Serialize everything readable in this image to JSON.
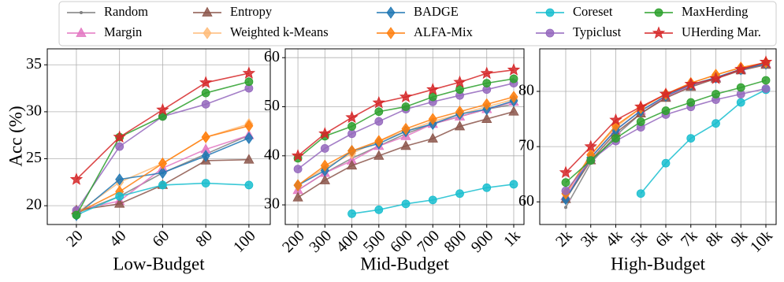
{
  "chart_data": [
    {
      "type": "line",
      "xlabel": "Low-Budget",
      "ylabel": "Acc (%)",
      "x": [
        20,
        40,
        60,
        80,
        100
      ],
      "xlim": [
        6.5,
        109.9
      ],
      "ylim": [
        18,
        36.7
      ],
      "xticks": [
        20,
        40,
        60,
        80,
        100
      ],
      "yticks": [
        20,
        25,
        30,
        35
      ],
      "grid": true,
      "series": [
        {
          "name": "Random",
          "color": "#7f7f7f",
          "marker": "dot",
          "values": [
            19.2,
            21.0,
            23.5,
            25.5,
            27.5
          ]
        },
        {
          "name": "Margin",
          "color": "#e377c2",
          "marker": "triangle",
          "values": [
            19.5,
            20.5,
            24.0,
            26.0,
            27.5
          ]
        },
        {
          "name": "Entropy",
          "color": "#8c564b",
          "marker": "triangle",
          "values": [
            19.5,
            20.2,
            22.2,
            24.8,
            24.9
          ]
        },
        {
          "name": "Weighted k-Means",
          "color": "#ffbb78",
          "marker": "diamond",
          "values": [
            19.2,
            22.5,
            24.5,
            27.3,
            28.7
          ]
        },
        {
          "name": "BADGE",
          "color": "#1f77b4",
          "marker": "diamond",
          "values": [
            19.0,
            22.8,
            23.5,
            25.3,
            27.2
          ]
        },
        {
          "name": "ALFA-Mix",
          "color": "#ff7f0e",
          "marker": "diamond",
          "values": [
            19.2,
            21.5,
            24.5,
            27.3,
            28.5
          ]
        },
        {
          "name": "Coreset",
          "color": "#17becf",
          "marker": "circle",
          "values": [
            19.0,
            21.0,
            22.2,
            22.4,
            22.2
          ]
        },
        {
          "name": "Typiclust",
          "color": "#9467bd",
          "marker": "circle",
          "values": [
            19.5,
            26.3,
            29.5,
            30.8,
            32.5
          ]
        },
        {
          "name": "MaxHerding",
          "color": "#2ca02c",
          "marker": "circle",
          "values": [
            19.0,
            27.3,
            29.5,
            32.0,
            33.2
          ]
        },
        {
          "name": "UHerding Mar.",
          "color": "#d62728",
          "marker": "star",
          "values": [
            22.8,
            27.3,
            30.2,
            33.1,
            34.1
          ]
        }
      ]
    },
    {
      "type": "line",
      "xlabel": "Mid-Budget",
      "x": [
        200,
        300,
        400,
        500,
        600,
        700,
        800,
        900,
        1000
      ],
      "xlim": [
        153,
        1038
      ],
      "ylim": [
        26,
        61.8
      ],
      "xticks": [
        200,
        300,
        400,
        500,
        600,
        700,
        800,
        900,
        {
          "value": 1000,
          "label": "1k"
        }
      ],
      "yticks": [
        30,
        40,
        50,
        60
      ],
      "grid": true,
      "series": [
        {
          "color": "#7f7f7f",
          "marker": "dot",
          "values": [
            33.0,
            36.5,
            39.5,
            42.0,
            44.5,
            46.5,
            48.0,
            49.5,
            50.5
          ]
        },
        {
          "color": "#e377c2",
          "marker": "triangle",
          "values": [
            33.0,
            36.5,
            39.0,
            42.0,
            44.0,
            46.5,
            48.0,
            49.5,
            51.0
          ]
        },
        {
          "color": "#8c564b",
          "marker": "triangle",
          "values": [
            31.5,
            35.0,
            38.0,
            40.0,
            42.0,
            43.5,
            46.0,
            47.5,
            49.0
          ]
        },
        {
          "color": "#ffbb78",
          "marker": "diamond",
          "values": [
            34.0,
            37.5,
            40.5,
            43.0,
            45.0,
            47.0,
            48.5,
            50.0,
            51.5
          ]
        },
        {
          "color": "#1f77b4",
          "marker": "diamond",
          "values": [
            34.0,
            37.0,
            41.0,
            42.5,
            45.0,
            46.5,
            48.5,
            49.5,
            51.2
          ]
        },
        {
          "color": "#ff7f0e",
          "marker": "diamond",
          "values": [
            34.0,
            38.0,
            41.0,
            43.0,
            45.5,
            47.5,
            49.0,
            50.5,
            52.0
          ]
        },
        {
          "color": "#17becf",
          "marker": "circle",
          "values": [
            null,
            null,
            28.2,
            29.0,
            30.2,
            31.0,
            32.3,
            33.5,
            34.2
          ]
        },
        {
          "color": "#9467bd",
          "marker": "circle",
          "values": [
            37.3,
            41.5,
            44.5,
            47.0,
            49.5,
            51.0,
            52.3,
            53.5,
            54.8
          ]
        },
        {
          "color": "#2ca02c",
          "marker": "circle",
          "values": [
            39.5,
            44.0,
            46.0,
            49.0,
            50.0,
            52.0,
            53.5,
            54.8,
            55.7
          ]
        },
        {
          "color": "#d62728",
          "marker": "star",
          "values": [
            40.0,
            44.5,
            47.8,
            50.8,
            52.0,
            53.5,
            55.0,
            56.8,
            57.5
          ]
        }
      ]
    },
    {
      "type": "line",
      "xlabel": "High-Budget",
      "x": [
        2000,
        3000,
        4000,
        5000,
        6000,
        7000,
        8000,
        9000,
        10000
      ],
      "xlim": [
        961,
        10409
      ],
      "ylim": [
        55.9,
        87.7
      ],
      "xticks": [
        {
          "value": 2000,
          "label": "2k"
        },
        {
          "value": 3000,
          "label": "3k"
        },
        {
          "value": 4000,
          "label": "4k"
        },
        {
          "value": 5000,
          "label": "5k"
        },
        {
          "value": 6000,
          "label": "6k"
        },
        {
          "value": 7000,
          "label": "7k"
        },
        {
          "value": 8000,
          "label": "8k"
        },
        {
          "value": 9000,
          "label": "9k"
        },
        {
          "value": 10000,
          "label": "10k"
        }
      ],
      "yticks": [
        60,
        70,
        80
      ],
      "grid": true,
      "series": [
        {
          "color": "#7f7f7f",
          "marker": "dot",
          "values": [
            59.0,
            67.0,
            72.0,
            76.0,
            79.0,
            81.0,
            82.5,
            84.0,
            85.0
          ]
        },
        {
          "color": "#e377c2",
          "marker": "triangle",
          "values": [
            61.0,
            68.0,
            73.0,
            76.5,
            79.0,
            81.0,
            82.5,
            84.0,
            85.0
          ]
        },
        {
          "color": "#8c564b",
          "marker": "triangle",
          "values": [
            60.5,
            67.5,
            72.5,
            76.0,
            78.8,
            80.8,
            82.3,
            83.8,
            84.8
          ]
        },
        {
          "color": "#ffbb78",
          "marker": "diamond",
          "values": [
            61.5,
            68.5,
            73.5,
            77.0,
            79.5,
            81.5,
            83.0,
            84.3,
            85.2
          ]
        },
        {
          "color": "#1f77b4",
          "marker": "diamond",
          "values": [
            60.5,
            68.0,
            73.0,
            76.5,
            79.2,
            81.2,
            82.5,
            84.0,
            85.0
          ]
        },
        {
          "color": "#ff7f0e",
          "marker": "diamond",
          "values": [
            61.5,
            68.5,
            73.8,
            77.0,
            79.5,
            81.5,
            83.0,
            84.3,
            85.2
          ]
        },
        {
          "color": "#17becf",
          "marker": "circle",
          "values": [
            null,
            null,
            null,
            61.5,
            67.0,
            71.5,
            74.2,
            78.0,
            80.3
          ]
        },
        {
          "color": "#9467bd",
          "marker": "circle",
          "values": [
            62.0,
            67.5,
            71.0,
            73.5,
            75.8,
            77.2,
            78.5,
            79.5,
            80.5
          ]
        },
        {
          "color": "#2ca02c",
          "marker": "circle",
          "values": [
            63.5,
            67.5,
            71.5,
            74.5,
            76.5,
            78.0,
            79.5,
            80.7,
            82.0
          ]
        },
        {
          "color": "#d62728",
          "marker": "star",
          "values": [
            65.3,
            70.0,
            74.8,
            77.2,
            79.5,
            81.3,
            82.3,
            84.0,
            85.3
          ]
        }
      ]
    }
  ]
}
